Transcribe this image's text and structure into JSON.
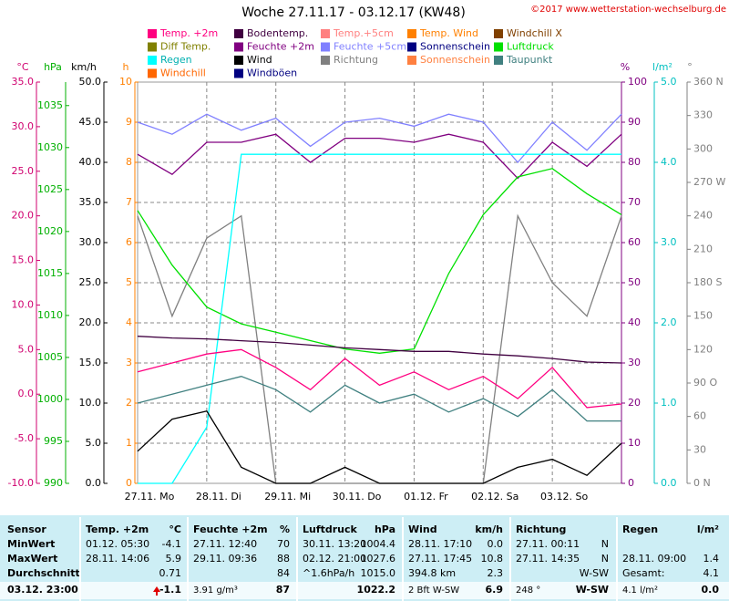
{
  "chart_data": {
    "type": "line",
    "title": "Woche 27.11.17 - 03.12.17 (KW48)",
    "copyright": "©2017 www.wetterstation-wechselburg.de",
    "legend": [
      {
        "name": "Temp. +2m",
        "color": "#ff0080"
      },
      {
        "name": "Bodentemp.",
        "color": "#400040"
      },
      {
        "name": "Temp.+5cm",
        "color": "#ff8080"
      },
      {
        "name": "Temp. Wind",
        "color": "#ff8000"
      },
      {
        "name": "Windchill X",
        "color": "#804000"
      },
      {
        "name": "Diff Temp.",
        "color": "#808000"
      },
      {
        "name": "Feuchte +2m",
        "color": "#800080"
      },
      {
        "name": "Feuchte +5cm",
        "color": "#8080ff"
      },
      {
        "name": "Sonnenschein",
        "color": "#000080"
      },
      {
        "name": "Luftdruck",
        "color": "#00e000"
      },
      {
        "name": "Regen",
        "color": "#00ffff"
      },
      {
        "name": "Wind",
        "color": "#000000"
      },
      {
        "name": "Richtung",
        "color": "#808080"
      },
      {
        "name": "Sonnenschein",
        "color": "#ff8040"
      },
      {
        "name": "Taupunkt",
        "color": "#408080"
      },
      {
        "name": "Windchill",
        "color": "#ff6600"
      },
      {
        "name": "Windböen",
        "color": "#000080"
      }
    ],
    "categories": [
      "27.11. Mo",
      "28.11. Di",
      "29.11. Mi",
      "30.11. Do",
      "01.12. Fr",
      "02.12. Sa",
      "03.12. So"
    ],
    "xlim": [
      0,
      7
    ],
    "x": [
      0,
      0.5,
      1,
      1.5,
      2,
      2.5,
      3,
      3.5,
      4,
      4.5,
      5,
      5.5,
      6,
      6.5,
      7
    ],
    "axes": [
      {
        "unit": "°C",
        "color": "#d0006f",
        "ylim": [
          -10,
          35
        ],
        "yticks": [
          {
            "value": -10,
            "label": "-10.0"
          },
          {
            "value": -5,
            "label": "-5.0"
          },
          {
            "value": 0,
            "label": "0.0"
          },
          {
            "value": 5,
            "label": "5.0"
          },
          {
            "value": 10,
            "label": "10.0"
          },
          {
            "value": 15,
            "label": "15.0"
          },
          {
            "value": 20,
            "label": "20.0"
          },
          {
            "value": 25,
            "label": "25.0"
          },
          {
            "value": 30,
            "label": "30.0"
          },
          {
            "value": 35,
            "label": "35.0"
          }
        ]
      },
      {
        "unit": "hPa",
        "color": "#00b000",
        "ylim": [
          990,
          1037.8
        ],
        "yticks": [
          990,
          995,
          1000,
          1005,
          1010,
          1015,
          1020,
          1025,
          1030,
          1035
        ]
      },
      {
        "unit": "km/h",
        "color": "#000000",
        "ylim": [
          0,
          50
        ],
        "yticks": [
          {
            "value": 0,
            "label": "0.0"
          },
          {
            "value": 5,
            "label": "5.0"
          },
          {
            "value": 10,
            "label": "10.0"
          },
          {
            "value": 15,
            "label": "15.0"
          },
          {
            "value": 20,
            "label": "20.0"
          },
          {
            "value": 25,
            "label": "25.0"
          },
          {
            "value": 30,
            "label": "30.0"
          },
          {
            "value": 35,
            "label": "35.0"
          },
          {
            "value": 40,
            "label": "40.0"
          },
          {
            "value": 45,
            "label": "45.0"
          },
          {
            "value": 50,
            "label": "50.0"
          }
        ]
      },
      {
        "unit": "h",
        "color": "#ff8000",
        "ylim": [
          0,
          10
        ],
        "yticks": [
          0,
          1,
          2,
          3,
          4,
          5,
          6,
          7,
          8,
          9,
          10
        ]
      },
      {
        "unit": "%",
        "color": "#800080",
        "ylim": [
          0,
          100
        ],
        "yticks": [
          0,
          10,
          20,
          30,
          40,
          50,
          60,
          70,
          80,
          90,
          100
        ]
      },
      {
        "unit": "l/m²",
        "color": "#00c0c0",
        "ylim": [
          0,
          5
        ],
        "yticks": [
          {
            "value": 0,
            "label": "0.0"
          },
          {
            "value": 1,
            "label": "1.0"
          },
          {
            "value": 2,
            "label": "2.0"
          },
          {
            "value": 3,
            "label": "3.0"
          },
          {
            "value": 4,
            "label": "4.0"
          },
          {
            "value": 5,
            "label": "5.0"
          }
        ]
      },
      {
        "unit": "°",
        "color": "#808080",
        "ylim": [
          0,
          360
        ],
        "yticks": [
          {
            "value": 0,
            "label": "0 N"
          },
          30,
          60,
          {
            "value": 90,
            "label": "90 O"
          },
          120,
          150,
          {
            "value": 180,
            "label": "180 S"
          },
          210,
          240,
          {
            "value": 270,
            "label": "270 W"
          },
          300,
          330,
          {
            "value": 360,
            "label": "360 N"
          }
        ]
      }
    ],
    "series": [
      {
        "legend": 12,
        "axis": 6,
        "values": [
          240,
          150,
          220,
          240,
          0,
          0,
          0,
          0,
          0,
          0,
          0,
          240,
          180,
          150,
          240
        ]
      },
      {
        "legend": 7,
        "axis": 4,
        "values": [
          90,
          87,
          92,
          88,
          91,
          84,
          90,
          91,
          89,
          92,
          90,
          80,
          90,
          83,
          92
        ]
      },
      {
        "legend": 6,
        "axis": 4,
        "values": [
          82,
          77,
          85,
          85,
          87,
          80,
          86,
          86,
          85,
          87,
          85,
          76,
          85,
          79,
          87
        ]
      },
      {
        "legend": 9,
        "axis": 1,
        "values": [
          1022.5,
          1016,
          1011,
          1009,
          1008,
          1007,
          1006,
          1005.5,
          1006,
          1015,
          1022,
          1026.5,
          1027.5,
          1024.5,
          1022
        ]
      },
      {
        "legend": 10,
        "axis": 5,
        "values": [
          0,
          0,
          0.7,
          4.1,
          4.1,
          4.1,
          4.1,
          4.1,
          4.1,
          4.1,
          4.1,
          4.1,
          4.1,
          4.1,
          4.1
        ]
      },
      {
        "legend": 1,
        "axis": 0,
        "values": [
          6.5,
          6.3,
          6.2,
          6,
          5.8,
          5.5,
          5.2,
          5,
          4.8,
          4.8,
          4.5,
          4.3,
          4,
          3.6,
          3.5
        ]
      },
      {
        "legend": 14,
        "axis": 0,
        "values": [
          -1,
          0,
          1,
          2,
          0.5,
          -2,
          1,
          -1,
          0,
          -2,
          -0.5,
          -2.5,
          0.5,
          -3,
          -3
        ]
      },
      {
        "legend": 0,
        "axis": 0,
        "values": [
          2.5,
          3.5,
          4.5,
          5,
          3,
          0.5,
          4,
          1,
          2.5,
          0.5,
          2,
          -0.5,
          3,
          -1.5,
          -1.1
        ]
      },
      {
        "legend": 11,
        "axis": 2,
        "values": [
          4,
          8,
          9,
          2,
          0,
          0,
          2,
          0,
          0,
          0,
          0,
          2,
          3,
          1,
          5
        ]
      }
    ]
  },
  "table": {
    "sensor": [
      "Sensor",
      "MinWert",
      "MaxWert",
      "Durchschnitt",
      "03.12. 23:00"
    ],
    "groups": [
      {
        "title": "Temp. +2m",
        "unit": "°C",
        "rows": [
          [
            "01.12. 05:30",
            "-4.1"
          ],
          [
            "28.11. 14:06",
            "5.9"
          ],
          [
            "0.71"
          ],
          [
            "-1.1"
          ]
        ]
      },
      {
        "title": "Feuchte +2m",
        "unit": "%",
        "rows": [
          [
            "27.11. 12:40",
            "70"
          ],
          [
            "29.11. 09:36",
            "88"
          ],
          [
            "84"
          ],
          [
            "3.91 g/m³",
            "87"
          ]
        ]
      },
      {
        "title": "Luftdruck",
        "unit": "hPa",
        "rows": [
          [
            "30.11. 13:20",
            "1004.4"
          ],
          [
            "02.12. 21:00",
            "1027.6"
          ],
          [
            "^1.6hPa/h",
            "1015.0"
          ],
          [
            "1022.2"
          ]
        ]
      },
      {
        "title": "Wind",
        "unit": "km/h",
        "rows": [
          [
            "28.11. 17:10",
            "0.0"
          ],
          [
            "27.11. 17:45",
            "10.8"
          ],
          [
            "394.8 km",
            "2.3"
          ],
          [
            "2 Bft W-SW",
            "6.9"
          ]
        ]
      },
      {
        "title": "Richtung",
        "unit": "",
        "rows": [
          [
            "27.11. 00:11",
            "N"
          ],
          [
            "27.11. 14:35",
            "N"
          ],
          [
            "W-SW"
          ],
          [
            "248 °",
            "W-SW"
          ]
        ]
      },
      {
        "title": "Regen",
        "unit": "l/m²",
        "rows": [
          [],
          [
            "28.11. 09:00",
            "1.4"
          ],
          [
            "Gesamt:",
            "4.1"
          ],
          [
            "4.1 l/m²",
            "0.0"
          ]
        ]
      }
    ]
  }
}
